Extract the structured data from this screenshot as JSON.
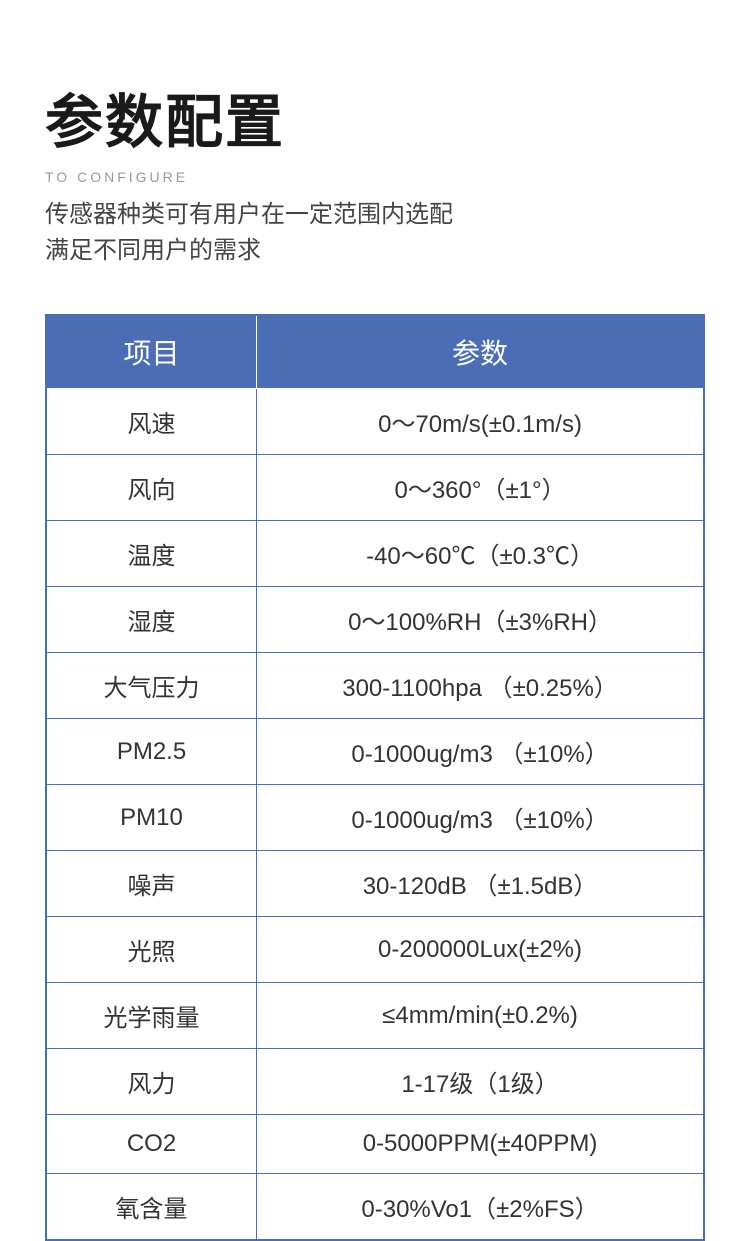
{
  "header": {
    "title": "参数配置",
    "subtitle_en": "TO CONFIGURE",
    "description_line1": "传感器种类可有用户在一定范围内选配",
    "description_line2": "满足不同用户的需求"
  },
  "table": {
    "type": "table",
    "header_bg_color": "#4a6db5",
    "header_text_color": "#ffffff",
    "border_color": "#4a6db5",
    "cell_text_color": "#333333",
    "header_fontsize": 28,
    "cell_fontsize": 24,
    "columns": [
      {
        "label": "项目",
        "width": "32%"
      },
      {
        "label": "参数",
        "width": "68%"
      }
    ],
    "rows": [
      {
        "item": "风速",
        "param": "0～70m/s(±0.1m/s)"
      },
      {
        "item": "风向",
        "param": "0～360°（±1°）"
      },
      {
        "item": "温度",
        "param": "-40～60℃（±0.3℃）"
      },
      {
        "item": "湿度",
        "param": "0～100%RH（±3%RH）"
      },
      {
        "item": "大气压力",
        "param": "300-1100hpa （±0.25%）"
      },
      {
        "item": "PM2.5",
        "param": "0-1000ug/m3 （±10%）"
      },
      {
        "item": "PM10",
        "param": "0-1000ug/m3 （±10%）"
      },
      {
        "item": "噪声",
        "param": "30-120dB （±1.5dB）"
      },
      {
        "item": "光照",
        "param": "0-200000Lux(±2%)"
      },
      {
        "item": "光学雨量",
        "param": "≤4mm/min(±0.2%)"
      },
      {
        "item": "风力",
        "param": "1-17级（1级）"
      },
      {
        "item": "CO2",
        "param": "0-5000PPM(±40PPM)"
      },
      {
        "item": "氧含量",
        "param": "0-30%Vo1（±2%FS）"
      }
    ]
  }
}
